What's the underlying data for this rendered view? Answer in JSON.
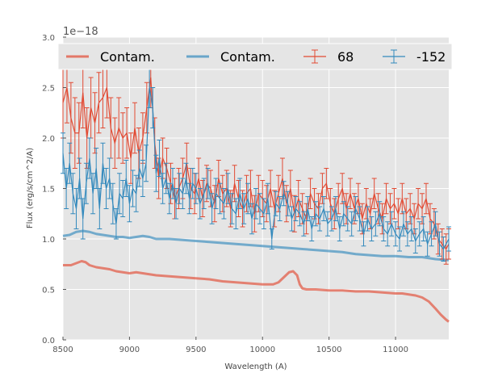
{
  "chart_data": {
    "type": "line",
    "xlabel": "Wavelength (A)",
    "ylabel": "Flux (erg/s/cm^2/A)",
    "offset_text": "1e−18",
    "xlim": [
      8500,
      11400
    ],
    "ylim": [
      0.0,
      3.0
    ],
    "x_ticks": [
      8500,
      9000,
      9500,
      10000,
      10500,
      11000
    ],
    "x_tick_labels": [
      "8500",
      "9000",
      "9500",
      "10000",
      "10500",
      "11000"
    ],
    "y_ticks": [
      0.0,
      0.5,
      1.0,
      1.5,
      2.0,
      2.5,
      3.0
    ],
    "y_tick_labels": [
      "0.0",
      "0.5",
      "1.0",
      "1.5",
      "2.0",
      "2.5",
      "3.0"
    ],
    "grid": true,
    "legend_position": "top",
    "legend": [
      "Contam.",
      "Contam.",
      "68",
      "-152"
    ],
    "colors": {
      "red": "#E24A33",
      "blue": "#348ABD",
      "background": "#E5E5E5",
      "grid": "#FFFFFF"
    },
    "series": [
      {
        "name": "Contam.",
        "kind": "line",
        "color": "#E24A33",
        "x": [
          8500,
          8560,
          8600,
          8640,
          8670,
          8700,
          8750,
          8800,
          8850,
          8900,
          8950,
          9000,
          9050,
          9100,
          9150,
          9200,
          9300,
          9400,
          9500,
          9600,
          9700,
          9800,
          9900,
          10000,
          10080,
          10120,
          10160,
          10200,
          10230,
          10260,
          10280,
          10300,
          10330,
          10400,
          10500,
          10600,
          10700,
          10800,
          10900,
          11000,
          11050,
          11100,
          11150,
          11200,
          11250,
          11300,
          11340,
          11380,
          11400
        ],
        "y": [
          0.74,
          0.74,
          0.76,
          0.78,
          0.77,
          0.74,
          0.72,
          0.71,
          0.7,
          0.68,
          0.67,
          0.66,
          0.67,
          0.66,
          0.65,
          0.64,
          0.63,
          0.62,
          0.61,
          0.6,
          0.58,
          0.57,
          0.56,
          0.55,
          0.55,
          0.57,
          0.62,
          0.67,
          0.68,
          0.64,
          0.55,
          0.51,
          0.5,
          0.5,
          0.49,
          0.49,
          0.48,
          0.48,
          0.47,
          0.46,
          0.46,
          0.45,
          0.44,
          0.42,
          0.38,
          0.31,
          0.25,
          0.2,
          0.18
        ]
      },
      {
        "name": "Contam.",
        "kind": "line",
        "color": "#348ABD",
        "x": [
          8500,
          8550,
          8600,
          8650,
          8700,
          8750,
          8800,
          8850,
          8900,
          8950,
          9000,
          9050,
          9100,
          9150,
          9200,
          9300,
          9400,
          9500,
          9600,
          9700,
          9800,
          9900,
          10000,
          10100,
          10200,
          10300,
          10400,
          10500,
          10600,
          10700,
          10800,
          10900,
          11000,
          11100,
          11200,
          11300,
          11400
        ],
        "y": [
          1.03,
          1.04,
          1.07,
          1.08,
          1.07,
          1.05,
          1.04,
          1.03,
          1.02,
          1.02,
          1.01,
          1.02,
          1.03,
          1.02,
          1.0,
          1.0,
          0.99,
          0.98,
          0.97,
          0.96,
          0.95,
          0.94,
          0.93,
          0.92,
          0.91,
          0.9,
          0.89,
          0.88,
          0.87,
          0.85,
          0.84,
          0.83,
          0.83,
          0.82,
          0.82,
          0.8,
          0.79
        ]
      },
      {
        "name": "68",
        "kind": "errorbar",
        "color": "#E24A33",
        "x": [
          8500,
          8530,
          8560,
          8590,
          8620,
          8650,
          8680,
          8710,
          8740,
          8770,
          8800,
          8830,
          8860,
          8890,
          8920,
          8950,
          8980,
          9010,
          9040,
          9070,
          9100,
          9130,
          9160,
          9190,
          9220,
          9250,
          9280,
          9310,
          9340,
          9370,
          9400,
          9430,
          9460,
          9490,
          9520,
          9550,
          9580,
          9610,
          9640,
          9670,
          9700,
          9730,
          9760,
          9790,
          9820,
          9850,
          9880,
          9910,
          9940,
          9970,
          10000,
          10030,
          10060,
          10090,
          10120,
          10150,
          10180,
          10210,
          10240,
          10270,
          10300,
          10330,
          10360,
          10390,
          10420,
          10450,
          10480,
          10510,
          10540,
          10570,
          10600,
          10630,
          10660,
          10690,
          10720,
          10750,
          10780,
          10810,
          10840,
          10870,
          10900,
          10930,
          10960,
          10990,
          11020,
          11050,
          11080,
          11110,
          11140,
          11170,
          11200,
          11230,
          11260,
          11290,
          11320,
          11350,
          11380,
          11400
        ],
        "y": [
          2.35,
          2.5,
          2.2,
          2.05,
          2.05,
          2.45,
          2.0,
          2.3,
          2.15,
          2.35,
          2.4,
          2.5,
          2.1,
          1.95,
          2.1,
          2.0,
          2.05,
          1.8,
          2.1,
          1.85,
          2.0,
          2.3,
          2.6,
          1.95,
          1.6,
          1.8,
          1.7,
          1.55,
          1.4,
          1.5,
          1.6,
          1.75,
          1.5,
          1.45,
          1.6,
          1.4,
          1.55,
          1.5,
          1.35,
          1.6,
          1.45,
          1.5,
          1.3,
          1.55,
          1.4,
          1.3,
          1.45,
          1.5,
          1.25,
          1.45,
          1.4,
          1.35,
          1.5,
          1.3,
          1.45,
          1.6,
          1.35,
          1.5,
          1.25,
          1.4,
          1.3,
          1.2,
          1.45,
          1.35,
          1.3,
          1.5,
          1.55,
          1.35,
          1.25,
          1.4,
          1.5,
          1.3,
          1.45,
          1.3,
          1.4,
          1.2,
          1.35,
          1.25,
          1.45,
          1.3,
          1.2,
          1.4,
          1.3,
          1.35,
          1.25,
          1.4,
          1.25,
          1.3,
          1.2,
          1.35,
          1.3,
          1.4,
          1.2,
          1.15,
          1.0,
          0.95,
          0.9,
          0.95
        ],
        "err": [
          0.35,
          0.35,
          0.35,
          0.35,
          0.3,
          0.35,
          0.3,
          0.3,
          0.3,
          0.3,
          0.3,
          0.3,
          0.3,
          0.25,
          0.3,
          0.25,
          0.25,
          0.25,
          0.25,
          0.25,
          0.25,
          0.25,
          0.3,
          0.25,
          0.2,
          0.2,
          0.2,
          0.2,
          0.2,
          0.2,
          0.2,
          0.2,
          0.2,
          0.2,
          0.2,
          0.18,
          0.18,
          0.18,
          0.18,
          0.18,
          0.18,
          0.18,
          0.18,
          0.18,
          0.18,
          0.18,
          0.18,
          0.18,
          0.18,
          0.18,
          0.18,
          0.18,
          0.18,
          0.18,
          0.18,
          0.2,
          0.18,
          0.18,
          0.18,
          0.18,
          0.15,
          0.15,
          0.15,
          0.15,
          0.15,
          0.15,
          0.15,
          0.15,
          0.15,
          0.15,
          0.15,
          0.15,
          0.15,
          0.15,
          0.15,
          0.15,
          0.15,
          0.15,
          0.15,
          0.15,
          0.15,
          0.15,
          0.15,
          0.15,
          0.15,
          0.15,
          0.15,
          0.15,
          0.15,
          0.15,
          0.15,
          0.15,
          0.15,
          0.15,
          0.15,
          0.15,
          0.15,
          0.15
        ]
      },
      {
        "name": "-152",
        "kind": "errorbar",
        "color": "#348ABD",
        "x": [
          8500,
          8525,
          8550,
          8575,
          8600,
          8625,
          8650,
          8675,
          8700,
          8725,
          8750,
          8775,
          8800,
          8825,
          8850,
          8875,
          8900,
          8925,
          8950,
          8975,
          9000,
          9025,
          9050,
          9075,
          9100,
          9125,
          9150,
          9175,
          9200,
          9225,
          9250,
          9275,
          9300,
          9325,
          9350,
          9375,
          9400,
          9425,
          9450,
          9475,
          9500,
          9530,
          9560,
          9590,
          9620,
          9650,
          9680,
          9710,
          9740,
          9770,
          9800,
          9830,
          9860,
          9890,
          9920,
          9950,
          9980,
          10010,
          10040,
          10070,
          10100,
          10130,
          10160,
          10190,
          10220,
          10250,
          10280,
          10310,
          10340,
          10370,
          10400,
          10430,
          10460,
          10490,
          10520,
          10550,
          10580,
          10610,
          10640,
          10670,
          10700,
          10730,
          10760,
          10790,
          10820,
          10850,
          10880,
          10910,
          10940,
          10970,
          11000,
          11030,
          11060,
          11090,
          11120,
          11150,
          11180,
          11210,
          11240,
          11270,
          11300,
          11330,
          11360,
          11400
        ],
        "y": [
          1.85,
          1.5,
          1.75,
          1.45,
          1.3,
          1.6,
          1.2,
          1.55,
          1.8,
          1.45,
          1.7,
          1.3,
          1.75,
          1.5,
          1.6,
          1.35,
          1.15,
          1.45,
          1.4,
          1.6,
          1.35,
          1.5,
          1.45,
          1.7,
          1.6,
          1.75,
          2.5,
          2.3,
          1.65,
          1.8,
          1.5,
          1.6,
          1.4,
          1.55,
          1.35,
          1.5,
          1.45,
          1.6,
          1.4,
          1.55,
          1.5,
          1.35,
          1.45,
          1.55,
          1.3,
          1.45,
          1.4,
          1.35,
          1.5,
          1.3,
          1.25,
          1.45,
          1.3,
          1.4,
          1.2,
          1.35,
          1.3,
          1.25,
          1.4,
          1.0,
          1.35,
          1.3,
          1.45,
          1.35,
          1.2,
          1.3,
          1.25,
          1.15,
          1.3,
          1.1,
          1.25,
          1.2,
          1.3,
          1.15,
          1.2,
          1.3,
          1.1,
          1.25,
          1.2,
          1.15,
          1.3,
          1.2,
          1.05,
          1.2,
          1.1,
          1.15,
          1.25,
          1.1,
          1.05,
          1.15,
          1.05,
          1.0,
          1.15,
          1.05,
          1.1,
          0.98,
          1.05,
          1.1,
          0.95,
          1.05,
          1.15,
          0.95,
          0.9,
          1.0
        ],
        "err": [
          0.2,
          0.2,
          0.2,
          0.2,
          0.2,
          0.2,
          0.2,
          0.2,
          0.2,
          0.2,
          0.2,
          0.2,
          0.2,
          0.2,
          0.2,
          0.2,
          0.15,
          0.2,
          0.18,
          0.18,
          0.18,
          0.18,
          0.18,
          0.18,
          0.18,
          0.18,
          0.2,
          0.2,
          0.18,
          0.18,
          0.15,
          0.15,
          0.15,
          0.15,
          0.15,
          0.15,
          0.15,
          0.15,
          0.15,
          0.15,
          0.15,
          0.15,
          0.15,
          0.15,
          0.15,
          0.15,
          0.15,
          0.15,
          0.15,
          0.15,
          0.15,
          0.15,
          0.15,
          0.15,
          0.15,
          0.15,
          0.15,
          0.15,
          0.15,
          0.1,
          0.12,
          0.12,
          0.12,
          0.12,
          0.12,
          0.12,
          0.12,
          0.12,
          0.12,
          0.12,
          0.12,
          0.12,
          0.12,
          0.12,
          0.12,
          0.12,
          0.12,
          0.12,
          0.12,
          0.12,
          0.12,
          0.12,
          0.12,
          0.12,
          0.12,
          0.12,
          0.12,
          0.12,
          0.12,
          0.12,
          0.12,
          0.12,
          0.12,
          0.12,
          0.12,
          0.12,
          0.12,
          0.12,
          0.12,
          0.12,
          0.12,
          0.12,
          0.12,
          0.12
        ]
      }
    ]
  }
}
